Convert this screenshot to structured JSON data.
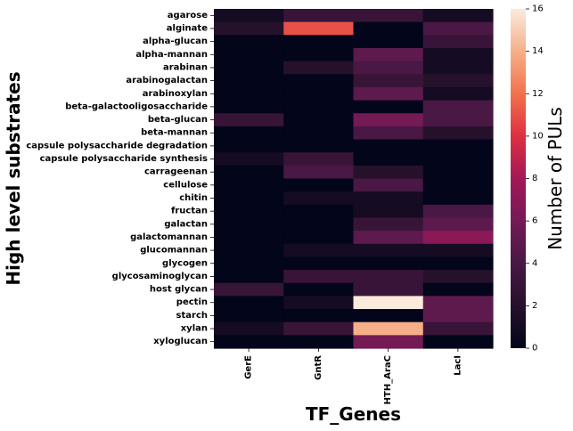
{
  "chart_data": {
    "type": "heatmap",
    "xlabel": "TF_Genes",
    "ylabel": "High level substrates",
    "colorbar_label": "Number of PULs",
    "colorbar_ticks": [
      0,
      2,
      4,
      6,
      8,
      10,
      12,
      14,
      16
    ],
    "vmin": 0,
    "vmax": 16,
    "columns": [
      "GerE",
      "GntR",
      "HTH_AraC",
      "LacI"
    ],
    "rows": [
      "agarose",
      "alginate",
      "alpha-glucan",
      "alpha-mannan",
      "arabinan",
      "arabinogalactan",
      "arabinoxylan",
      "beta-galactooligosaccharide",
      "beta-glucan",
      "beta-mannan",
      "capsule polysaccharide degradation",
      "capsule polysaccharide synthesis",
      "carrageenan",
      "cellulose",
      "chitin",
      "fructan",
      "galactan",
      "galactomannan",
      "glucomannan",
      "glycogen",
      "glycosaminoglycan",
      "host glycan",
      "pectin",
      "starch",
      "xylan",
      "xyloglucan"
    ],
    "values": [
      [
        1,
        3,
        3,
        1
      ],
      [
        2,
        11,
        0,
        4
      ],
      [
        0,
        0,
        0,
        3
      ],
      [
        0,
        0,
        5,
        1
      ],
      [
        0,
        2,
        4,
        1
      ],
      [
        0,
        0,
        3,
        2
      ],
      [
        0,
        0,
        5,
        1
      ],
      [
        0,
        0,
        0,
        4
      ],
      [
        3,
        0,
        6,
        4
      ],
      [
        0,
        0,
        4,
        2
      ],
      [
        0,
        0,
        0,
        0
      ],
      [
        1,
        3,
        0,
        0
      ],
      [
        0,
        4,
        2,
        0
      ],
      [
        0,
        0,
        4,
        0
      ],
      [
        0,
        1,
        1,
        0
      ],
      [
        0,
        0,
        1,
        4
      ],
      [
        0,
        0,
        3,
        5
      ],
      [
        0,
        0,
        5,
        7
      ],
      [
        0,
        1,
        1,
        1
      ],
      [
        0,
        0,
        0,
        0
      ],
      [
        0,
        3,
        3,
        2
      ],
      [
        3,
        0,
        3,
        0
      ],
      [
        0,
        1,
        16,
        5
      ],
      [
        0,
        0,
        0,
        5
      ],
      [
        1,
        3,
        14,
        3
      ],
      [
        0,
        0,
        6,
        0
      ]
    ]
  }
}
